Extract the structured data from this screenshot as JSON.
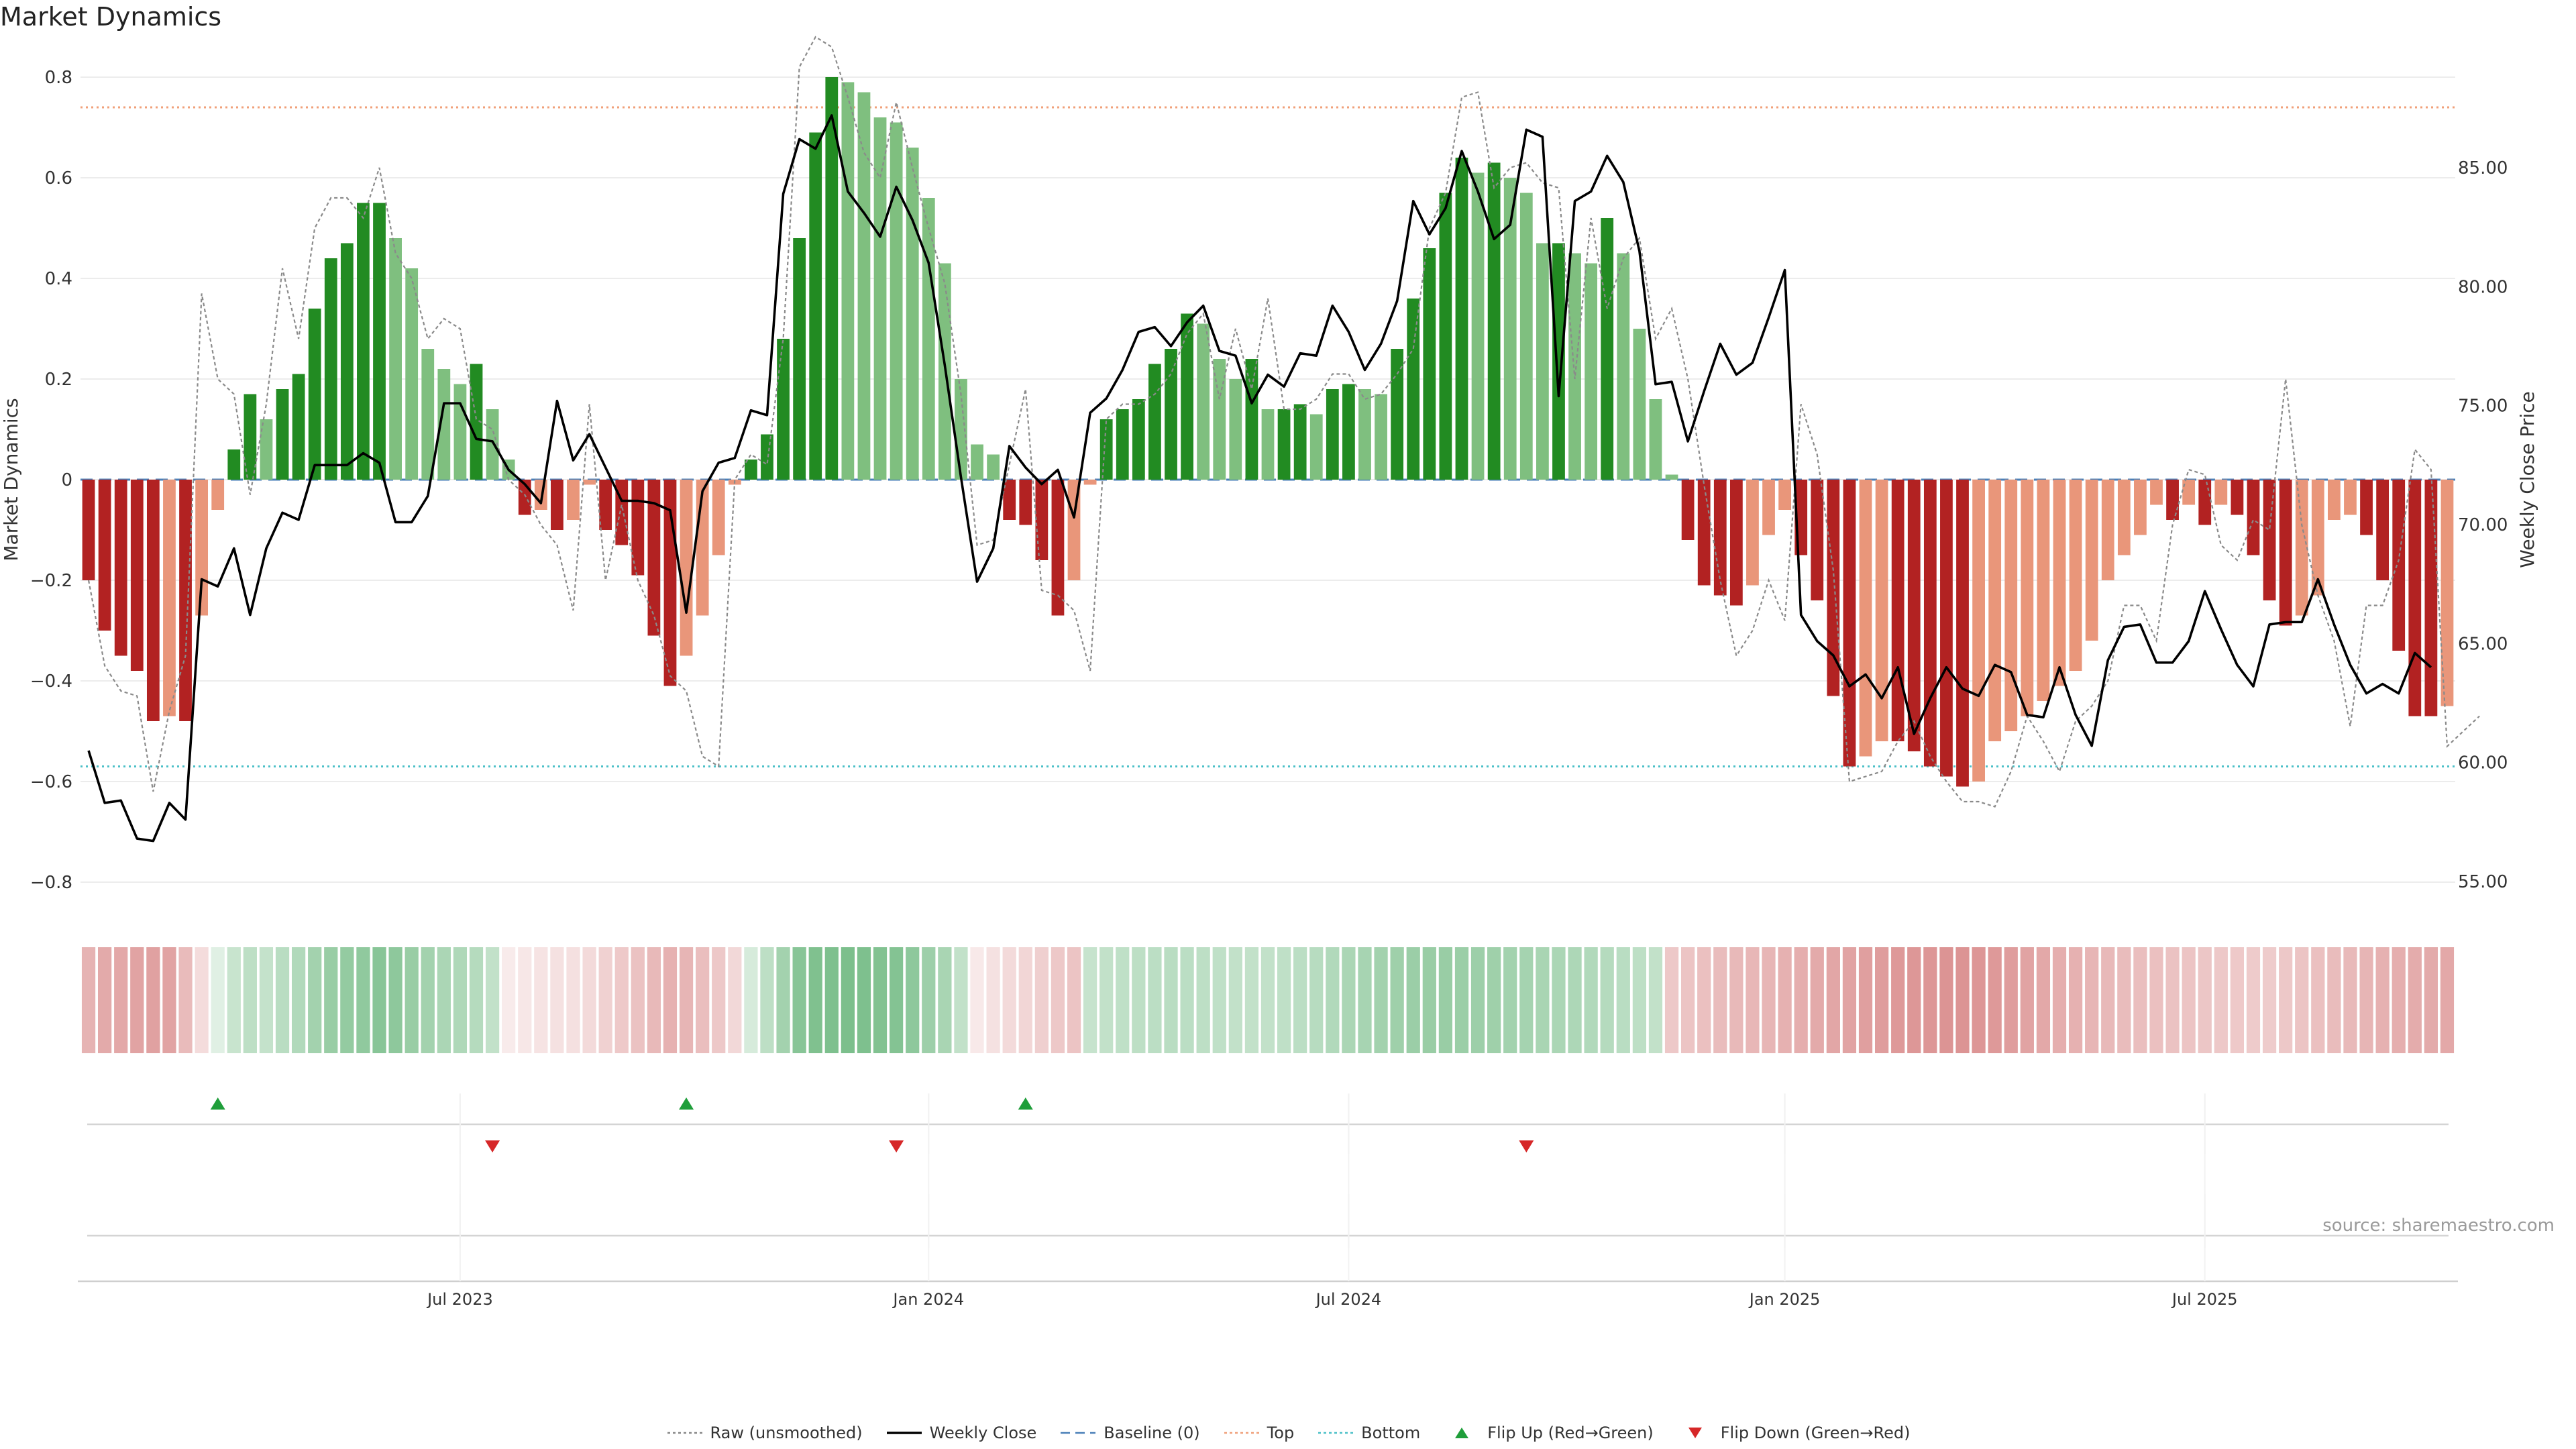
{
  "chart_data": {
    "type": "bar",
    "title": "Market Dynamics",
    "ylabel": "Market Dynamics",
    "y2label": "Weekly Close Price",
    "ylim": [
      -0.86,
      0.88
    ],
    "y2lim": [
      53.7,
      90.5
    ],
    "yticks": [
      "0.8",
      "0.6",
      "0.4",
      "0.2",
      "0",
      "−0.2",
      "−0.4",
      "−0.6",
      "−0.8"
    ],
    "ytick_values": [
      0.8,
      0.6,
      0.4,
      0.2,
      0,
      -0.2,
      -0.4,
      -0.6,
      -0.8
    ],
    "y2ticks": [
      "85.00",
      "80.00",
      "75.00",
      "70.00",
      "65.00",
      "60.00",
      "55.00"
    ],
    "y2tick_values": [
      85,
      80,
      75,
      70,
      65,
      60,
      55
    ],
    "xticks": [
      "Jul 2023",
      "Jan 2024",
      "Jul 2024",
      "Jan 2025",
      "Jul 2025"
    ],
    "xtick_weeks": [
      23,
      52,
      78,
      105,
      131
    ],
    "top_threshold": 0.74,
    "bottom_threshold": -0.57,
    "baseline": 0,
    "bar_values": [
      -0.2,
      -0.3,
      -0.35,
      -0.38,
      -0.48,
      -0.47,
      -0.48,
      -0.27,
      -0.06,
      0.06,
      0.17,
      0.12,
      0.18,
      0.21,
      0.34,
      0.44,
      0.47,
      0.55,
      0.55,
      0.48,
      0.42,
      0.26,
      0.22,
      0.19,
      0.23,
      0.14,
      0.04,
      -0.07,
      -0.06,
      -0.1,
      -0.08,
      -0.01,
      -0.1,
      -0.13,
      -0.19,
      -0.31,
      -0.41,
      -0.35,
      -0.27,
      -0.15,
      -0.01,
      0.04,
      0.09,
      0.28,
      0.48,
      0.69,
      0.8,
      0.79,
      0.77,
      0.72,
      0.71,
      0.66,
      0.56,
      0.43,
      0.2,
      0.07,
      0.05,
      -0.08,
      -0.09,
      -0.16,
      -0.27,
      -0.2,
      -0.01,
      0.12,
      0.14,
      0.16,
      0.23,
      0.26,
      0.33,
      0.31,
      0.24,
      0.2,
      0.24,
      0.14,
      0.14,
      0.15,
      0.13,
      0.18,
      0.19,
      0.18,
      0.17,
      0.26,
      0.36,
      0.46,
      0.57,
      0.64,
      0.61,
      0.63,
      0.6,
      0.57,
      0.47,
      0.47,
      0.45,
      0.43,
      0.52,
      0.45,
      0.3,
      0.16,
      0.01,
      -0.12,
      -0.21,
      -0.23,
      -0.25,
      -0.21,
      -0.11,
      -0.06,
      -0.15,
      -0.24,
      -0.43,
      -0.57,
      -0.55,
      -0.52,
      -0.52,
      -0.54,
      -0.57,
      -0.59,
      -0.61,
      -0.6,
      -0.52,
      -0.5,
      -0.47,
      -0.44,
      -0.41,
      -0.38,
      -0.32,
      -0.2,
      -0.15,
      -0.11,
      -0.05,
      -0.08,
      -0.05,
      -0.09,
      -0.05,
      -0.07,
      -0.15,
      -0.24,
      -0.29,
      -0.27,
      -0.23,
      -0.08,
      -0.07,
      -0.11,
      -0.2,
      -0.34,
      -0.47,
      -0.47,
      -0.45
    ],
    "weekly_close": [
      60.5,
      58.3,
      58.4,
      56.8,
      56.7,
      58.3,
      57.6,
      67.7,
      67.4,
      69.0,
      66.2,
      69.0,
      70.5,
      70.2,
      72.5,
      72.5,
      72.5,
      73.0,
      72.6,
      70.1,
      70.1,
      71.2,
      75.1,
      75.1,
      73.6,
      73.5,
      72.3,
      71.7,
      70.9,
      75.2,
      72.7,
      73.8,
      72.4,
      71.0,
      71.0,
      70.9,
      70.6,
      66.3,
      71.4,
      72.6,
      72.8,
      74.8,
      74.6,
      83.9,
      86.2,
      85.8,
      87.2,
      84.0,
      83.1,
      82.1,
      84.2,
      82.8,
      81.0,
      76.7,
      72.0,
      67.6,
      69.0,
      73.3,
      72.4,
      71.7,
      72.3,
      70.3,
      74.7,
      75.3,
      76.5,
      78.1,
      78.3,
      77.5,
      78.5,
      79.2,
      77.3,
      77.1,
      75.1,
      76.3,
      75.8,
      77.2,
      77.1,
      79.2,
      78.1,
      76.5,
      77.6,
      79.4,
      83.6,
      82.2,
      83.3,
      85.7,
      84.0,
      82.0,
      82.6,
      86.6,
      86.3,
      75.4,
      83.6,
      84.0,
      85.5,
      84.4,
      81.5,
      75.9,
      76.0,
      73.5,
      75.6,
      77.6,
      76.3,
      76.8,
      78.7,
      80.7,
      66.2,
      65.1,
      64.5,
      63.2,
      63.7,
      62.7,
      64.0,
      61.2,
      62.7,
      64.0,
      63.1,
      62.8,
      64.1,
      63.8,
      62.0,
      61.9,
      64.0,
      62.0,
      60.7,
      64.3,
      65.7,
      65.8,
      64.2,
      64.2,
      65.1,
      67.2,
      65.6,
      64.1,
      63.2,
      65.8,
      65.9,
      65.9,
      67.7,
      65.8,
      64.1,
      62.9,
      63.3,
      62.9,
      64.6,
      64.0
    ],
    "raw_values": [
      -0.2,
      -0.37,
      -0.42,
      -0.43,
      -0.62,
      -0.46,
      -0.35,
      0.37,
      0.2,
      0.17,
      -0.03,
      0.15,
      0.42,
      0.28,
      0.5,
      0.56,
      0.56,
      0.52,
      0.62,
      0.45,
      0.4,
      0.28,
      0.32,
      0.3,
      0.12,
      0.1,
      0.0,
      -0.03,
      -0.09,
      -0.13,
      -0.26,
      0.15,
      -0.2,
      -0.05,
      -0.2,
      -0.27,
      -0.39,
      -0.42,
      -0.55,
      -0.57,
      0.0,
      0.05,
      0.03,
      0.28,
      0.82,
      0.88,
      0.86,
      0.76,
      0.65,
      0.6,
      0.75,
      0.62,
      0.5,
      0.39,
      0.17,
      -0.13,
      -0.12,
      0.03,
      0.18,
      -0.22,
      -0.23,
      -0.26,
      -0.38,
      0.12,
      0.15,
      0.15,
      0.17,
      0.21,
      0.29,
      0.33,
      0.16,
      0.3,
      0.18,
      0.36,
      0.14,
      0.14,
      0.16,
      0.21,
      0.21,
      0.16,
      0.17,
      0.21,
      0.26,
      0.5,
      0.57,
      0.76,
      0.77,
      0.58,
      0.62,
      0.63,
      0.59,
      0.58,
      0.2,
      0.52,
      0.34,
      0.44,
      0.48,
      0.28,
      0.34,
      0.2,
      -0.01,
      -0.2,
      -0.35,
      -0.3,
      -0.2,
      -0.28,
      0.15,
      0.05,
      -0.18,
      -0.6,
      -0.59,
      -0.58,
      -0.52,
      -0.48,
      -0.55,
      -0.6,
      -0.64,
      -0.64,
      -0.65,
      -0.58,
      -0.47,
      -0.52,
      -0.58,
      -0.48,
      -0.45,
      -0.4,
      -0.25,
      -0.25,
      -0.32,
      -0.09,
      0.02,
      0.01,
      -0.13,
      -0.16,
      -0.08,
      -0.1,
      0.2,
      -0.09,
      -0.23,
      -0.32,
      -0.49,
      -0.25,
      -0.25,
      -0.16,
      0.06,
      0.02,
      -0.53,
      -0.5,
      -0.47
    ],
    "color_bands": [
      -0.41,
      -0.46,
      -0.47,
      -0.5,
      -0.51,
      -0.5,
      -0.37,
      -0.19,
      0.15,
      0.27,
      0.32,
      0.29,
      0.34,
      0.38,
      0.45,
      0.5,
      0.52,
      0.54,
      0.58,
      0.55,
      0.5,
      0.45,
      0.41,
      0.39,
      0.36,
      0.3,
      -0.11,
      -0.13,
      -0.15,
      -0.16,
      -0.17,
      -0.2,
      -0.25,
      -0.29,
      -0.33,
      -0.38,
      -0.42,
      -0.4,
      -0.35,
      -0.3,
      -0.21,
      0.2,
      0.32,
      0.45,
      0.58,
      0.62,
      0.63,
      0.64,
      0.63,
      0.61,
      0.6,
      0.55,
      0.48,
      0.42,
      0.3,
      -0.12,
      -0.16,
      -0.2,
      -0.22,
      -0.26,
      -0.3,
      -0.32,
      0.28,
      0.3,
      0.31,
      0.32,
      0.33,
      0.34,
      0.33,
      0.32,
      0.31,
      0.3,
      0.3,
      0.3,
      0.31,
      0.33,
      0.35,
      0.38,
      0.41,
      0.43,
      0.45,
      0.47,
      0.49,
      0.5,
      0.5,
      0.49,
      0.48,
      0.47,
      0.45,
      0.44,
      0.42,
      0.41,
      0.4,
      0.38,
      0.36,
      0.34,
      0.32,
      0.3,
      -0.3,
      -0.32,
      -0.34,
      -0.36,
      -0.38,
      -0.39,
      -0.4,
      -0.42,
      -0.44,
      -0.46,
      -0.48,
      -0.5,
      -0.52,
      -0.53,
      -0.55,
      -0.56,
      -0.57,
      -0.58,
      -0.58,
      -0.57,
      -0.55,
      -0.53,
      -0.5,
      -0.47,
      -0.44,
      -0.42,
      -0.4,
      -0.38,
      -0.36,
      -0.35,
      -0.34,
      -0.33,
      -0.32,
      -0.31,
      -0.3,
      -0.29,
      -0.28,
      -0.28,
      -0.3,
      -0.32,
      -0.34,
      -0.36,
      -0.38,
      -0.4,
      -0.42,
      -0.44,
      -0.45,
      -0.46,
      -0.47
    ],
    "flip_up_weeks": [
      8,
      37,
      58
    ],
    "flip_down_weeks": [
      25,
      50,
      89
    ],
    "legend": [
      {
        "label": "Raw (unsmoothed)",
        "icon": "dotted-line",
        "color": "#888888"
      },
      {
        "label": "Weekly Close",
        "icon": "solid-line",
        "color": "#000000"
      },
      {
        "label": "Baseline (0)",
        "icon": "dashed-line",
        "color": "#4a80b8"
      },
      {
        "label": "Top",
        "icon": "dotted-line",
        "color": "#f0a07a"
      },
      {
        "label": "Bottom",
        "icon": "dotted-line",
        "color": "#4cc0c8"
      },
      {
        "label": "Flip Up (Red→Green)",
        "icon": "triangle-up",
        "color": "#1f9e3a"
      },
      {
        "label": "Flip Down (Green→Red)",
        "icon": "triangle-down",
        "color": "#d62728"
      }
    ],
    "colors": {
      "strong_green": "#228b22",
      "light_green": "#7fbf7f",
      "strong_red": "#b22222",
      "light_red": "#e9967a",
      "top_line": "#f0a07a",
      "bottom_line": "#4cc0c8",
      "baseline": "#4a80b8"
    }
  },
  "source": "source: sharemaestro.com"
}
